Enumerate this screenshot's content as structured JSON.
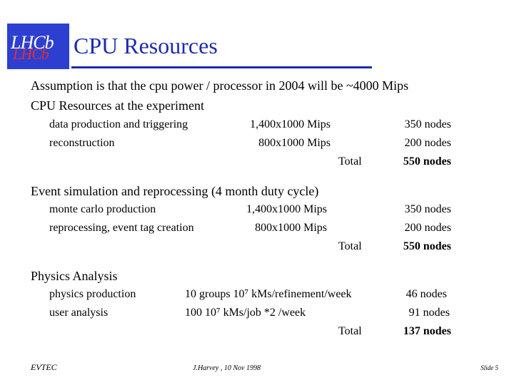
{
  "logo": "LHCb",
  "title": "CPU Resources",
  "assumption": "Assumption is that the cpu power / processor in 2004 will be  ~4000 Mips",
  "sections": [
    {
      "heading": "CPU Resources at the experiment",
      "rows": [
        [
          "data production and triggering",
          "1,400x1000 Mips",
          "350 nodes"
        ],
        [
          "reconstruction",
          "800x1000 Mips",
          "200 nodes"
        ]
      ],
      "total_label": "Total",
      "total": "550 nodes"
    },
    {
      "heading": "Event simulation and reprocessing (4 month duty cycle)",
      "rows": [
        [
          "monte carlo production",
          "1,400x1000 Mips",
          "350 nodes"
        ],
        [
          "reprocessing, event tag creation",
          "800x1000 Mips",
          "200 nodes"
        ]
      ],
      "total_label": "Total",
      "total": "550 nodes"
    },
    {
      "heading": "Physics Analysis",
      "rows": [
        [
          "physics production",
          "10 groups 10⁷ kMs/refinement/week",
          "46 nodes"
        ],
        [
          "user analysis",
          "100 10⁷ kMs/job *2 /week",
          "91 nodes"
        ]
      ],
      "total_label": "Total",
      "total": "137 nodes"
    }
  ],
  "footer": {
    "left": "EVTEC",
    "center": "J.Harvey ,  10 Nov 1998",
    "right": "Slide 5"
  }
}
